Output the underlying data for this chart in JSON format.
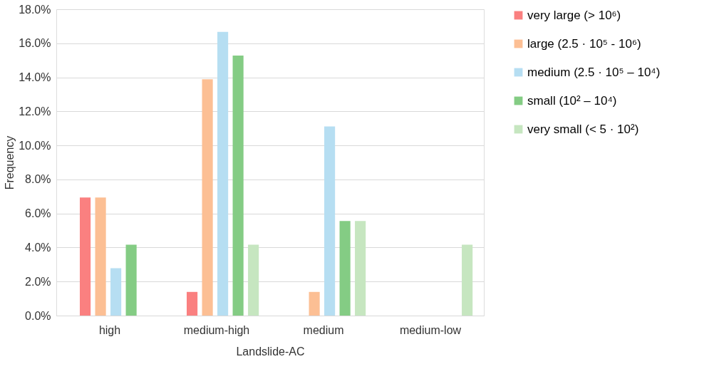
{
  "chart_data": {
    "type": "bar",
    "xlabel": "Landslide-AC",
    "ylabel": "Frequency",
    "categories": [
      "high",
      "medium-high",
      "medium",
      "medium-low"
    ],
    "series": [
      {
        "name": "very large (> 10⁶)",
        "color": "#fa8080",
        "values": [
          6.94,
          1.39,
          0,
          0
        ]
      },
      {
        "name": "large (2.5 · 10⁵ - 10⁶)",
        "color": "#fcbf94",
        "values": [
          6.94,
          13.89,
          1.39,
          0
        ]
      },
      {
        "name": "medium (2.5 · 10⁵ – 10⁴)",
        "color": "#b6def2",
        "values": [
          2.78,
          16.67,
          11.11,
          0
        ]
      },
      {
        "name": "small  (10² – 10⁴)",
        "color": "#84cc84",
        "values": [
          4.17,
          15.28,
          5.56,
          0
        ]
      },
      {
        "name": "very small (< 5 · 10²)",
        "color": "#c6e6c0",
        "values": [
          0,
          4.17,
          5.56,
          4.17
        ]
      }
    ],
    "ylim": [
      0,
      18
    ],
    "yticks": [
      {
        "value": 0,
        "label": "0.0%"
      },
      {
        "value": 2,
        "label": "2.0%"
      },
      {
        "value": 4,
        "label": "4.0%"
      },
      {
        "value": 6,
        "label": "6.0%"
      },
      {
        "value": 8,
        "label": "8.0%"
      },
      {
        "value": 10,
        "label": "10.0%"
      },
      {
        "value": 12,
        "label": "12.0%"
      },
      {
        "value": 14,
        "label": "14.0%"
      },
      {
        "value": 16,
        "label": "16.0%"
      },
      {
        "value": 18,
        "label": "18.0%"
      }
    ],
    "grid": "y",
    "legend": "right"
  }
}
